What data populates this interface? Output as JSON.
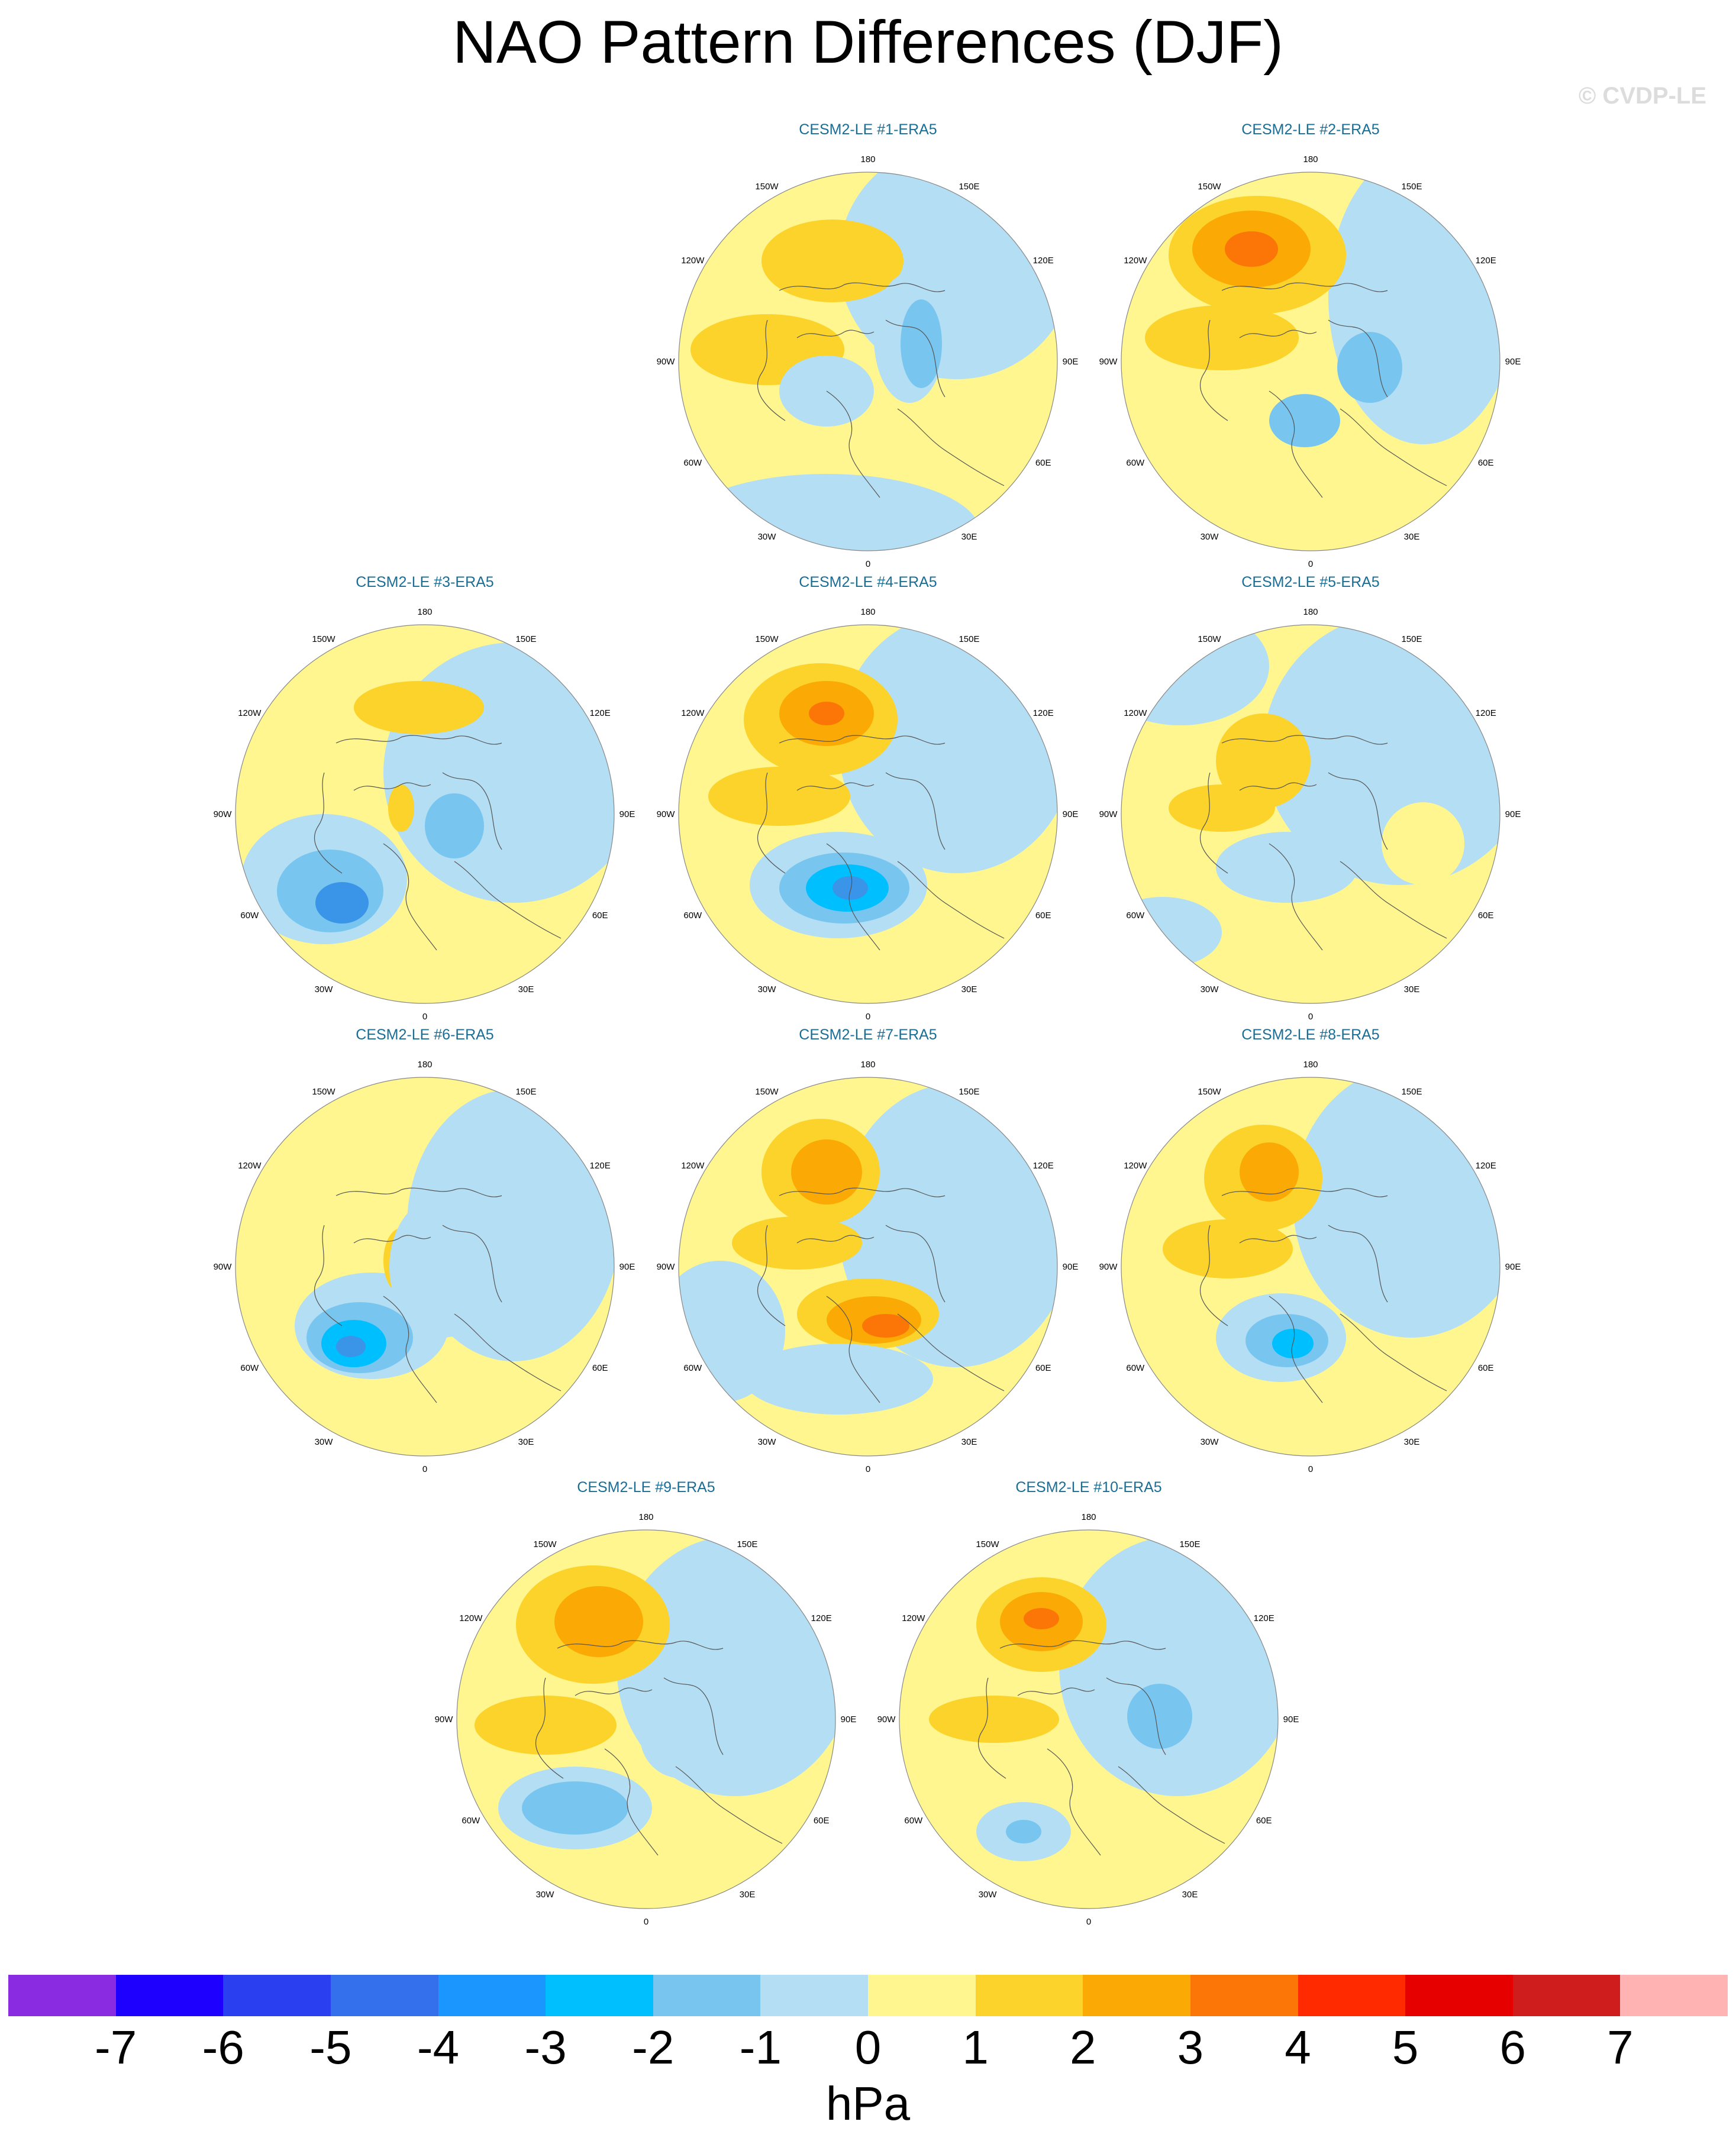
{
  "title": "NAO Pattern Differences (DJF)",
  "copyright": "© CVDP-LE",
  "colors": {
    "ocean_base": "#b4def4",
    "land_base": "#fff68f",
    "pos1": "#fcd32a",
    "pos2": "#fba904",
    "pos3": "#fb7606",
    "neg1": "#b4def4",
    "neg2": "#78c6f0",
    "neg3": "#3a94e8",
    "neg4": "#00bfff",
    "coast": "#555555"
  },
  "longitude_labels": [
    "180",
    "150E",
    "120E",
    "90E",
    "60E",
    "30E",
    "0",
    "30W",
    "60W",
    "90W",
    "120W",
    "150W"
  ],
  "panels": [
    {
      "title": "CESM2-LE #1-ERA5"
    },
    {
      "title": "CESM2-LE #2-ERA5"
    },
    {
      "title": "CESM2-LE #3-ERA5"
    },
    {
      "title": "CESM2-LE #4-ERA5"
    },
    {
      "title": "CESM2-LE #5-ERA5"
    },
    {
      "title": "CESM2-LE #6-ERA5"
    },
    {
      "title": "CESM2-LE #7-ERA5"
    },
    {
      "title": "CESM2-LE #8-ERA5"
    },
    {
      "title": "CESM2-LE #9-ERA5"
    },
    {
      "title": "CESM2-LE #10-ERA5"
    }
  ],
  "colorbar": {
    "colors": [
      "#8a2be2",
      "#1e00ff",
      "#2a40f0",
      "#3470ec",
      "#1c96ff",
      "#00bfff",
      "#78c6f0",
      "#b4def4",
      "#fff68f",
      "#fcd32a",
      "#fba904",
      "#fb7606",
      "#ff2a00",
      "#e60000",
      "#cf1d1d",
      "#ffb3b3"
    ],
    "ticks": [
      "-7",
      "-6",
      "-5",
      "-4",
      "-3",
      "-2",
      "-1",
      "0",
      "1",
      "2",
      "3",
      "4",
      "5",
      "6",
      "7"
    ],
    "unit": "hPa"
  }
}
